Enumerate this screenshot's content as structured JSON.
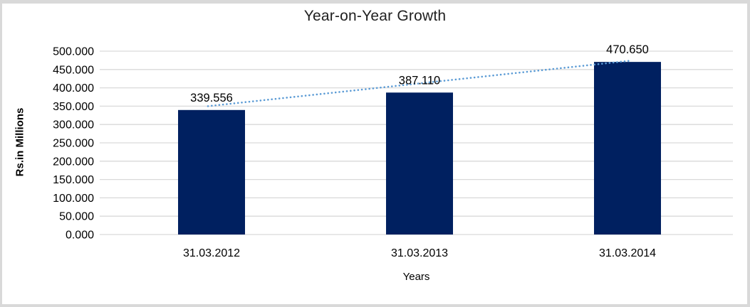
{
  "chart_data": {
    "type": "bar",
    "title": "Year-on-Year Growth",
    "xlabel": "Years",
    "ylabel": "Rs.in Millions",
    "categories": [
      "31.03.2012",
      "31.03.2013",
      "31.03.2014"
    ],
    "values": [
      339.556,
      387.11,
      470.65
    ],
    "value_labels": [
      "339.556",
      "387.110",
      "470.650"
    ],
    "ylim": [
      0,
      500
    ],
    "ytick_step": 50,
    "ytick_labels": [
      "0.000",
      "50.000",
      "100.000",
      "150.000",
      "200.000",
      "250.000",
      "300.000",
      "350.000",
      "400.000",
      "450.000",
      "500.000"
    ],
    "grid": true,
    "legend": "none",
    "trendline": {
      "type": "linear",
      "style": "dotted",
      "start_value": 350,
      "end_value": 474
    },
    "colors": {
      "bar": "#002060",
      "trendline": "#5B9BD5",
      "gridline": "#D9D9D9",
      "frame_border": "#D9D9D9",
      "text": "#000000"
    }
  }
}
